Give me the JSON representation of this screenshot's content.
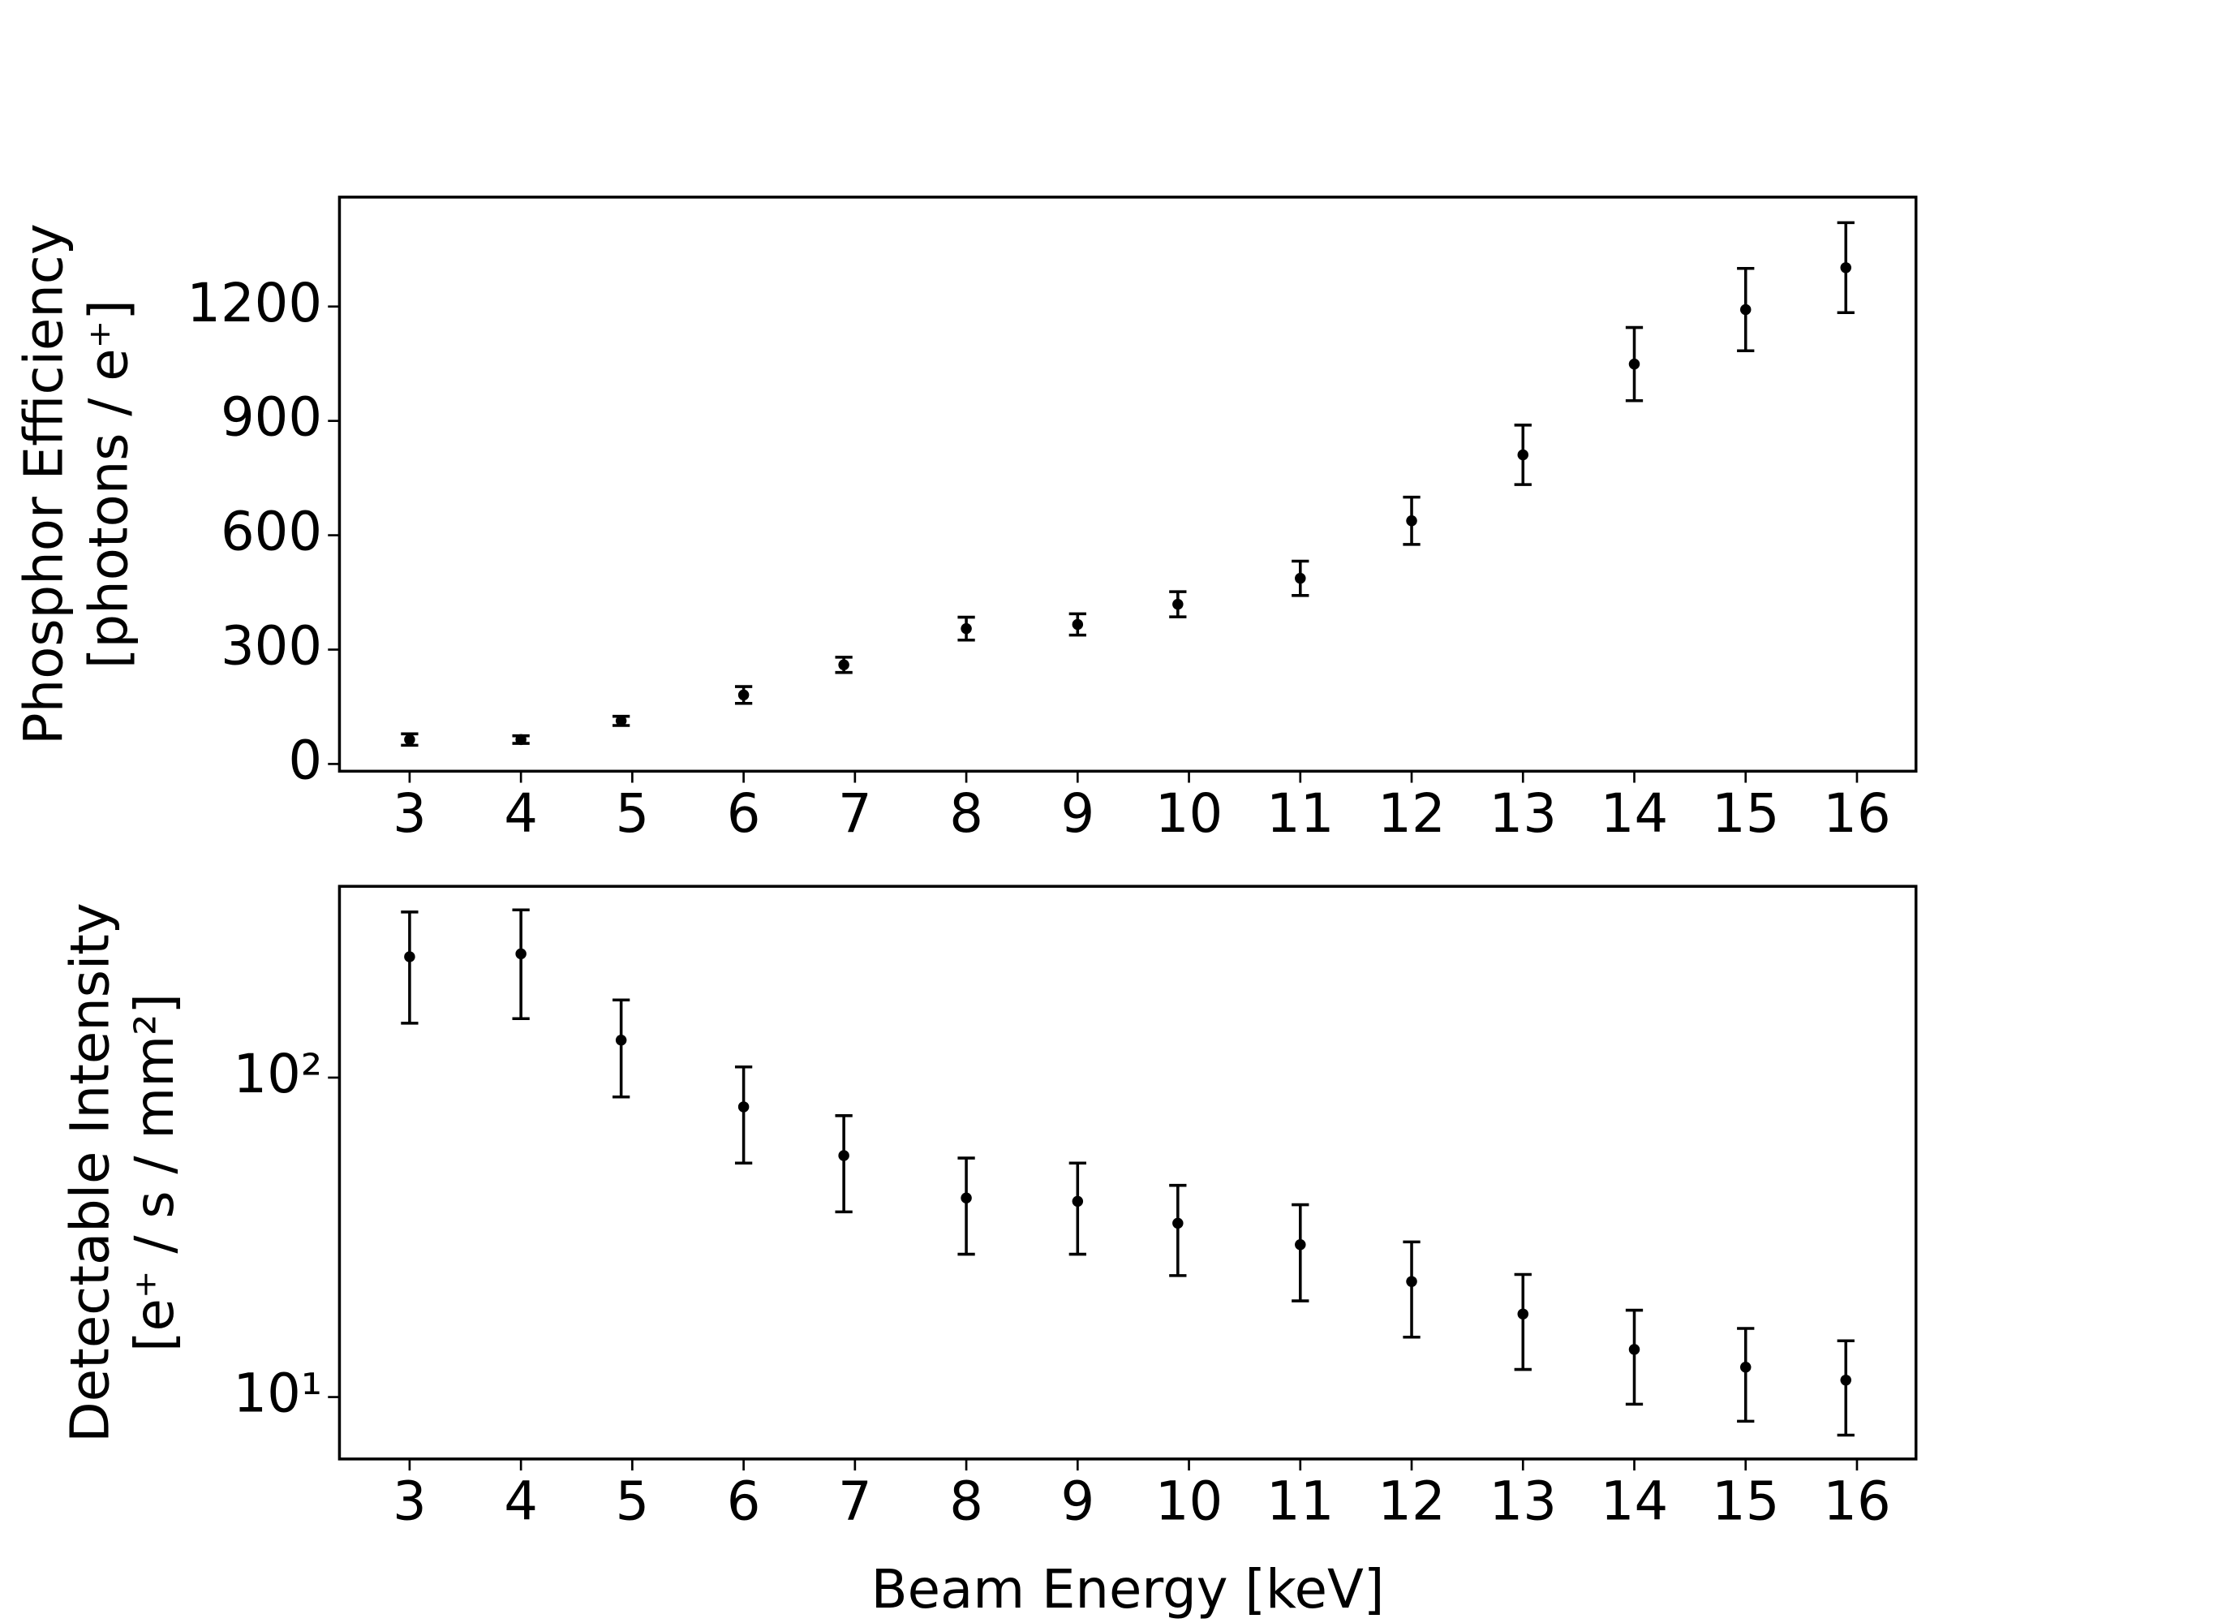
{
  "chart_data": [
    {
      "type": "scatter",
      "ylabel": [
        "Phosphor Efficiency",
        "[photons / e⁺]"
      ],
      "x": [
        3,
        4,
        4.9,
        6,
        6.9,
        8,
        9,
        9.9,
        11,
        12,
        13,
        14,
        15,
        15.9
      ],
      "values": [
        64,
        64,
        113,
        181,
        260,
        355,
        366,
        419,
        487,
        638,
        811,
        1049,
        1192,
        1302
      ],
      "errors": [
        15,
        10,
        12,
        22,
        20,
        30,
        28,
        33,
        45,
        62,
        78,
        96,
        108,
        118
      ],
      "color": "#000000",
      "xlim": [
        2.37,
        16.53
      ],
      "xticks": [
        3,
        4,
        5,
        6,
        7,
        8,
        9,
        10,
        11,
        12,
        13,
        14,
        15,
        16
      ],
      "ylim": [
        -19,
        1487
      ],
      "yticks": [
        0,
        300,
        600,
        900,
        1200
      ],
      "log": false
    },
    {
      "type": "scatter",
      "ylabel": [
        "Detectable Intensity",
        "[e⁺ / s / mm²]"
      ],
      "xlabel": "Beam Energy [keV]",
      "x": [
        3,
        4,
        4.9,
        6,
        6.9,
        8,
        9,
        9.9,
        11,
        12,
        13,
        14,
        15,
        15.9
      ],
      "values": [
        239,
        244,
        131,
        81,
        57,
        42,
        41,
        35,
        30,
        23,
        18.2,
        14.1,
        12.4,
        11.3
      ],
      "errors": [
        91,
        91,
        44,
        27,
        19,
        14,
        13,
        11,
        10,
        7.6,
        6,
        4.6,
        4,
        3.7
      ],
      "color": "#000000",
      "xlim": [
        2.37,
        16.53
      ],
      "xticks": [
        3,
        4,
        5,
        6,
        7,
        8,
        9,
        10,
        11,
        12,
        13,
        14,
        15,
        16
      ],
      "ylim": [
        6.4,
        397
      ],
      "yticks": [
        {
          "value": 10,
          "label": "10¹"
        },
        {
          "value": 100,
          "label": "10²"
        }
      ],
      "log": true
    }
  ]
}
